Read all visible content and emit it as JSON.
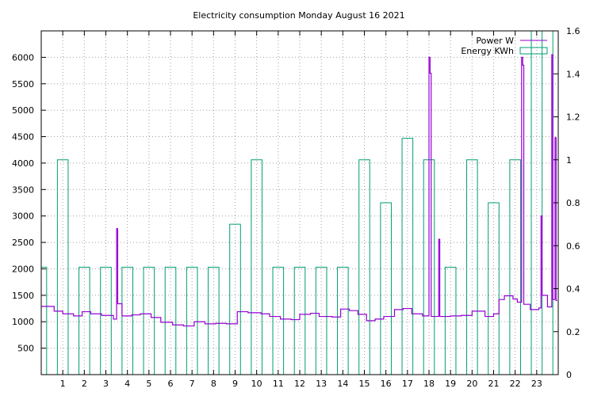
{
  "chart_data": {
    "type": "line",
    "title": "Electricity consumption Monday August 16 2021",
    "x_ticks": [
      1,
      2,
      3,
      4,
      5,
      6,
      7,
      8,
      9,
      10,
      11,
      12,
      13,
      14,
      15,
      16,
      17,
      18,
      19,
      20,
      21,
      22,
      23
    ],
    "y_ticks": [
      500,
      1000,
      1500,
      2000,
      2500,
      3000,
      3500,
      4000,
      4500,
      5000,
      5500,
      6000
    ],
    "y2_ticks": [
      "0",
      "0.2",
      "0.4",
      "0.6",
      "0.8",
      "1",
      "1.2",
      "1.4",
      "1.6"
    ],
    "xlim": [
      0,
      24
    ],
    "ylim": [
      0,
      6500
    ],
    "y2lim": [
      0,
      1.6
    ],
    "grid": true,
    "legend_position": "top-right",
    "series": [
      {
        "name": "Power W",
        "color": "#9400d3",
        "style": "step-line",
        "points": [
          [
            0,
            1290
          ],
          [
            0.6,
            1200
          ],
          [
            1.0,
            1150
          ],
          [
            1.5,
            1110
          ],
          [
            1.9,
            1190
          ],
          [
            2.3,
            1150
          ],
          [
            2.8,
            1120
          ],
          [
            3.35,
            1050
          ],
          [
            3.5,
            2760
          ],
          [
            3.55,
            1340
          ],
          [
            3.75,
            1110
          ],
          [
            4.2,
            1130
          ],
          [
            4.6,
            1150
          ],
          [
            5.1,
            1080
          ],
          [
            5.55,
            990
          ],
          [
            6.1,
            940
          ],
          [
            6.6,
            920
          ],
          [
            7.1,
            1000
          ],
          [
            7.6,
            960
          ],
          [
            8.1,
            970
          ],
          [
            8.6,
            960
          ],
          [
            9.1,
            1190
          ],
          [
            9.6,
            1170
          ],
          [
            10.2,
            1150
          ],
          [
            10.6,
            1100
          ],
          [
            11.1,
            1050
          ],
          [
            11.6,
            1040
          ],
          [
            12.0,
            1140
          ],
          [
            12.5,
            1160
          ],
          [
            12.9,
            1100
          ],
          [
            13.5,
            1090
          ],
          [
            13.9,
            1240
          ],
          [
            14.3,
            1210
          ],
          [
            14.7,
            1140
          ],
          [
            15.1,
            1020
          ],
          [
            15.5,
            1050
          ],
          [
            15.9,
            1100
          ],
          [
            16.4,
            1230
          ],
          [
            16.8,
            1250
          ],
          [
            17.2,
            1150
          ],
          [
            17.7,
            1110
          ],
          [
            18.0,
            6000
          ],
          [
            18.05,
            5700
          ],
          [
            18.1,
            1100
          ],
          [
            18.45,
            2560
          ],
          [
            18.5,
            1100
          ],
          [
            19.0,
            1110
          ],
          [
            19.5,
            1120
          ],
          [
            20.0,
            1200
          ],
          [
            20.6,
            1100
          ],
          [
            21.0,
            1150
          ],
          [
            21.25,
            1420
          ],
          [
            21.5,
            1490
          ],
          [
            21.9,
            1430
          ],
          [
            22.1,
            1370
          ],
          [
            22.3,
            6000
          ],
          [
            22.35,
            5850
          ],
          [
            22.4,
            1330
          ],
          [
            22.7,
            1230
          ],
          [
            23.1,
            1260
          ],
          [
            23.2,
            3000
          ],
          [
            23.25,
            1500
          ],
          [
            23.5,
            1280
          ],
          [
            23.7,
            6050
          ],
          [
            23.75,
            1420
          ],
          [
            23.85,
            4480
          ],
          [
            23.9,
            1400
          ]
        ]
      },
      {
        "name": "Energy KWh",
        "color": "#009e73",
        "style": "impulse-box",
        "values": [
          0.5,
          1.0,
          0.5,
          0.5,
          0.5,
          0.5,
          0.5,
          0.5,
          0.5,
          0.7,
          1.0,
          0.5,
          0.5,
          0.5,
          0.5,
          1.0,
          0.8,
          1.1,
          1.0,
          0.5,
          1.0,
          0.8,
          1.0,
          1.6,
          1.6
        ]
      }
    ]
  }
}
